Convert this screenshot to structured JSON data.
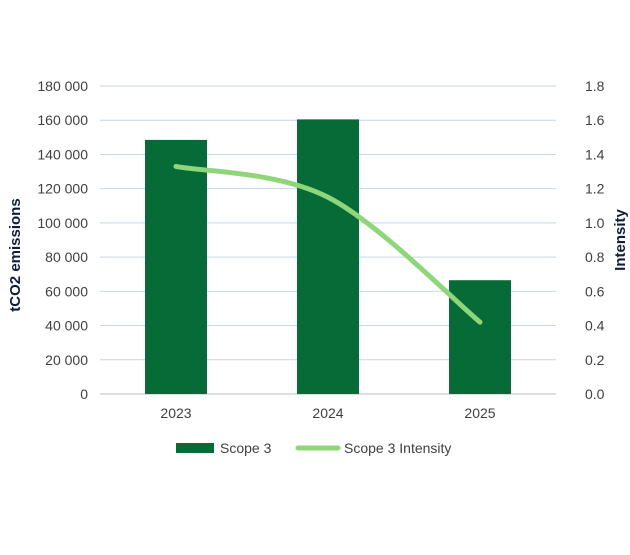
{
  "chart_data": {
    "type": "bar",
    "categories": [
      "2023",
      "2024",
      "2025"
    ],
    "series": [
      {
        "name": "Scope 3",
        "type": "bar",
        "axis": "left",
        "values": [
          148500,
          160500,
          66500
        ],
        "color": "#066b36"
      },
      {
        "name": "Scope 3 Intensity",
        "type": "line",
        "axis": "right",
        "values": [
          1.33,
          1.15,
          0.42
        ],
        "color": "#8fd67a"
      }
    ],
    "ylabel": "tCO2 emissions",
    "y2label": "Intensity",
    "ylim": [
      0,
      180000
    ],
    "y2lim": [
      0,
      1.8
    ],
    "yticks": [
      "0",
      "20 000",
      "40 000",
      "60 000",
      "80 000",
      "100 000",
      "120 000",
      "140 000",
      "160 000",
      "180 000"
    ],
    "y2ticks": [
      "0.0",
      "0.2",
      "0.4",
      "0.6",
      "0.8",
      "1.0",
      "1.2",
      "1.4",
      "1.6",
      "1.8"
    ],
    "grid": true,
    "legend_position": "bottom"
  }
}
